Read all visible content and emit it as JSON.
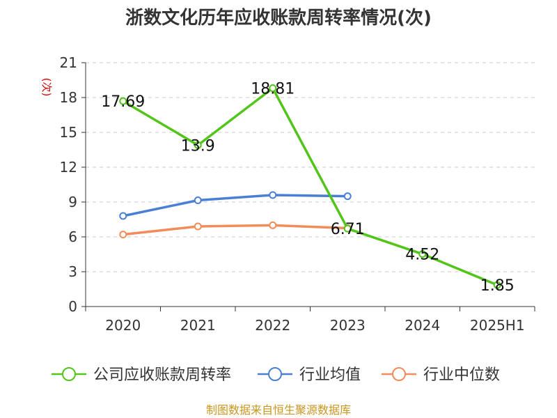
{
  "chart_data": {
    "type": "line",
    "title": "浙数文化历年应收账款周转率情况(次)",
    "ylabel": "(次)",
    "xlabel": "",
    "categories": [
      "2020",
      "2021",
      "2022",
      "2023",
      "2024",
      "2025H1"
    ],
    "ylim": [
      0,
      21
    ],
    "yticks": [
      0,
      3,
      6,
      9,
      12,
      15,
      18,
      21
    ],
    "grid": true,
    "legend_position": "bottom",
    "series": [
      {
        "name": "公司应收账款周转率",
        "color": "#52c41a",
        "values": [
          17.69,
          13.9,
          18.81,
          6.71,
          4.52,
          1.85
        ],
        "labels": [
          "17.69",
          "13.9",
          "18.81",
          "6.71",
          "4.52",
          "1.85"
        ]
      },
      {
        "name": "行业均值",
        "color": "#4a7fd6",
        "values": [
          7.8,
          9.15,
          9.6,
          9.5,
          null,
          null
        ]
      },
      {
        "name": "行业中位数",
        "color": "#f28c5a",
        "values": [
          6.2,
          6.9,
          7.0,
          6.75,
          null,
          null
        ]
      }
    ],
    "source": "制图数据来自恒生聚源数据库"
  }
}
